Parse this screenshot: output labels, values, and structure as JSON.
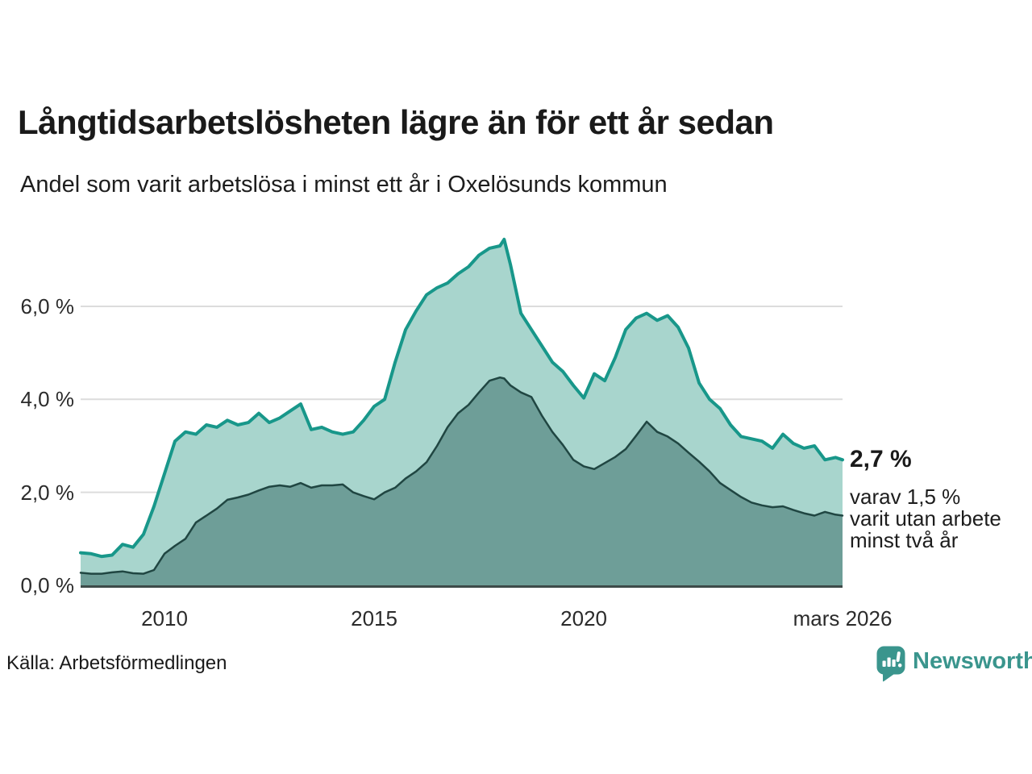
{
  "colors": {
    "background": "#ffffff",
    "grid": "#dcdcdc",
    "axis": "#3d4a49",
    "text_dark": "#1a1a1a",
    "tick_text": "#2b2b2b",
    "brand_teal": "#3a958d",
    "series_one_year_stroke": "#18978a",
    "series_one_year_fill": "#a8d5cd",
    "series_two_years_stroke": "#204642",
    "series_two_years_fill": "#6e9e98"
  },
  "annotation": {
    "value_label": "2,7 %",
    "detail_lines": [
      "varav 1,5 %",
      "varit utan arbete",
      "minst två år"
    ]
  },
  "footer": {
    "source": "Källa: Arbetsförmedlingen",
    "brand": "Newsworthy",
    "brand_icon": "bar-chart-speech-bubble"
  },
  "chart_data": {
    "type": "area",
    "title": "Långtidsarbetslösheten lägre än för ett år sedan",
    "subtitle": "Andel som varit arbetslösa i minst ett år i Oxelösunds kommun",
    "xlabel": "",
    "ylabel": "",
    "grid": true,
    "legend_position": "annotation-right",
    "xlim": [
      2008.0,
      2026.17
    ],
    "ylim": [
      0,
      7.56
    ],
    "yticks": {
      "values": [
        0,
        2,
        4,
        6
      ],
      "labels": [
        "0,0 %",
        "2,0 %",
        "4,0 %",
        "6,0 %"
      ]
    },
    "xticks": {
      "values": [
        2010,
        2015,
        2020,
        2026.17
      ],
      "labels": [
        "2010",
        "2015",
        "2020",
        "mars 2026"
      ]
    },
    "x": [
      2008.0,
      2008.25,
      2008.5,
      2008.75,
      2009.0,
      2009.25,
      2009.5,
      2009.75,
      2010.0,
      2010.25,
      2010.5,
      2010.75,
      2011.0,
      2011.25,
      2011.5,
      2011.75,
      2012.0,
      2012.25,
      2012.5,
      2012.75,
      2013.0,
      2013.25,
      2013.5,
      2013.75,
      2014.0,
      2014.25,
      2014.5,
      2014.75,
      2015.0,
      2015.25,
      2015.5,
      2015.75,
      2016.0,
      2016.25,
      2016.5,
      2016.75,
      2017.0,
      2017.25,
      2017.5,
      2017.75,
      2018.0,
      2018.1,
      2018.25,
      2018.5,
      2018.75,
      2019.0,
      2019.25,
      2019.5,
      2019.75,
      2020.0,
      2020.25,
      2020.5,
      2020.75,
      2021.0,
      2021.25,
      2021.5,
      2021.75,
      2022.0,
      2022.25,
      2022.5,
      2022.75,
      2023.0,
      2023.25,
      2023.5,
      2023.75,
      2024.0,
      2024.25,
      2024.5,
      2024.75,
      2025.0,
      2025.25,
      2025.5,
      2025.75,
      2026.0,
      2026.17
    ],
    "series": [
      {
        "name": "Andel arbetslösa minst ett år",
        "end_value_label": "2,7 %",
        "values": [
          0.7,
          0.68,
          0.62,
          0.65,
          0.88,
          0.82,
          1.1,
          1.7,
          2.4,
          3.1,
          3.3,
          3.25,
          3.45,
          3.4,
          3.55,
          3.45,
          3.5,
          3.7,
          3.5,
          3.6,
          3.75,
          3.9,
          3.35,
          3.4,
          3.3,
          3.25,
          3.3,
          3.55,
          3.85,
          4.0,
          4.8,
          5.5,
          5.9,
          6.25,
          6.4,
          6.5,
          6.7,
          6.85,
          7.1,
          7.25,
          7.3,
          7.44,
          6.9,
          5.85,
          5.5,
          5.15,
          4.8,
          4.6,
          4.3,
          4.03,
          4.55,
          4.4,
          4.9,
          5.5,
          5.75,
          5.85,
          5.7,
          5.8,
          5.55,
          5.1,
          4.35,
          4.0,
          3.8,
          3.45,
          3.2,
          3.15,
          3.1,
          2.95,
          3.25,
          3.05,
          2.95,
          3.0,
          2.7,
          2.75,
          2.7
        ]
      },
      {
        "name": "Andel utan arbete minst två år",
        "end_value_label": "1,5 %",
        "values": [
          0.27,
          0.25,
          0.25,
          0.28,
          0.3,
          0.26,
          0.25,
          0.33,
          0.68,
          0.85,
          1.0,
          1.35,
          1.5,
          1.65,
          1.84,
          1.89,
          1.95,
          2.04,
          2.12,
          2.15,
          2.12,
          2.2,
          2.1,
          2.15,
          2.15,
          2.17,
          2.0,
          1.92,
          1.85,
          2.0,
          2.1,
          2.3,
          2.45,
          2.65,
          3.0,
          3.4,
          3.7,
          3.88,
          4.15,
          4.4,
          4.47,
          4.45,
          4.3,
          4.15,
          4.05,
          3.65,
          3.3,
          3.02,
          2.7,
          2.56,
          2.5,
          2.63,
          2.76,
          2.93,
          3.22,
          3.52,
          3.3,
          3.2,
          3.05,
          2.85,
          2.66,
          2.45,
          2.2,
          2.05,
          1.9,
          1.78,
          1.72,
          1.68,
          1.7,
          1.62,
          1.55,
          1.5,
          1.58,
          1.52,
          1.5
        ]
      }
    ]
  }
}
